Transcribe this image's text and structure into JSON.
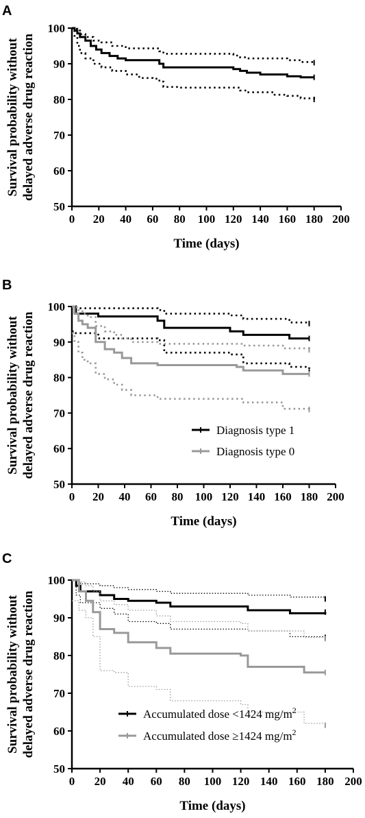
{
  "chart_data": [
    {
      "panel": "A",
      "type": "line",
      "step": true,
      "xlabel": "Time (days)",
      "ylabel_line1": "Survival probability without",
      "ylabel_line2": "delayed adverse drug reaction",
      "xlim": [
        0,
        200
      ],
      "ylim": [
        50,
        100
      ],
      "xticks": [
        0,
        20,
        40,
        60,
        80,
        100,
        120,
        140,
        160,
        180,
        200
      ],
      "yticks": [
        50,
        60,
        70,
        80,
        90,
        100
      ],
      "legend": [],
      "series": [
        {
          "style": "solid",
          "color": "#000000",
          "x": [
            0,
            2,
            4,
            6,
            10,
            14,
            18,
            22,
            28,
            34,
            40,
            50,
            60,
            65,
            68,
            80,
            100,
            120,
            125,
            130,
            140,
            150,
            160,
            170,
            180
          ],
          "y": [
            100,
            99.3,
            98.5,
            97.5,
            96.5,
            95,
            94,
            93,
            92.2,
            91.5,
            91,
            91,
            91,
            90,
            89,
            89,
            89,
            88.5,
            88,
            87.5,
            87,
            87,
            86.5,
            86.2,
            86.2
          ]
        },
        {
          "style": "dotted",
          "color": "#000000",
          "x": [
            0,
            2,
            4,
            6,
            10,
            16,
            22,
            30,
            40,
            50,
            60,
            65,
            68,
            80,
            100,
            120,
            125,
            130,
            150,
            160,
            170,
            180
          ],
          "y": [
            100,
            99.8,
            99.3,
            98.3,
            97.5,
            96.5,
            96,
            95,
            94.3,
            94.3,
            94.3,
            93.5,
            92.8,
            92.8,
            92.8,
            92.3,
            91.8,
            91.5,
            91.5,
            91,
            90.5,
            90.3
          ]
        },
        {
          "style": "dotted",
          "color": "#000000",
          "x": [
            0,
            2,
            4,
            6,
            10,
            16,
            22,
            30,
            40,
            50,
            60,
            65,
            68,
            80,
            100,
            120,
            125,
            130,
            150,
            160,
            170,
            180
          ],
          "y": [
            100,
            97.5,
            95,
            93,
            91.5,
            90,
            89,
            88,
            87,
            86,
            85.8,
            85,
            83.5,
            83.3,
            83.3,
            83.3,
            82.5,
            82,
            81.3,
            81,
            80.3,
            80
          ]
        }
      ]
    },
    {
      "panel": "B",
      "type": "line",
      "step": true,
      "xlabel": "Time (days)",
      "ylabel_line1": "Survival probability without",
      "ylabel_line2": "delayed adverse drug reaction",
      "xlim": [
        0,
        200
      ],
      "ylim": [
        50,
        100
      ],
      "xticks": [
        0,
        20,
        40,
        60,
        80,
        100,
        120,
        140,
        160,
        180,
        200
      ],
      "yticks": [
        50,
        60,
        70,
        80,
        90,
        100
      ],
      "legend": [
        {
          "label": "Diagnosis type 1",
          "color": "#000000"
        },
        {
          "label": "Diagnosis type  0",
          "color": "#999999"
        }
      ],
      "series": [
        {
          "style": "solid",
          "color": "#000000",
          "x": [
            0,
            3,
            20,
            65,
            70,
            120,
            130,
            165,
            180
          ],
          "y": [
            100,
            98,
            97.2,
            96,
            94,
            93,
            92,
            91,
            91
          ]
        },
        {
          "style": "dotted",
          "color": "#000000",
          "x": [
            0,
            3,
            20,
            65,
            70,
            120,
            130,
            165,
            180
          ],
          "y": [
            100,
            99.5,
            99.5,
            99,
            98,
            97.5,
            96.5,
            95.5,
            95.2
          ]
        },
        {
          "style": "dotted",
          "color": "#000000",
          "x": [
            0,
            3,
            20,
            65,
            70,
            120,
            130,
            155,
            165,
            180
          ],
          "y": [
            93,
            92.5,
            91,
            90.5,
            87,
            86.5,
            84,
            84,
            83,
            81.5
          ]
        },
        {
          "style": "solid",
          "color": "#999999",
          "x": [
            0,
            2,
            5,
            8,
            12,
            18,
            25,
            32,
            38,
            45,
            60,
            65,
            125,
            130,
            160,
            180
          ],
          "y": [
            100,
            98,
            96,
            95,
            94,
            90,
            88,
            87,
            85.5,
            84,
            84,
            83.5,
            83,
            82,
            81,
            81
          ]
        },
        {
          "style": "dotted",
          "color": "#999999",
          "x": [
            0,
            2,
            5,
            8,
            12,
            18,
            25,
            32,
            38,
            45,
            60,
            65,
            125,
            130,
            160,
            180
          ],
          "y": [
            100,
            99.8,
            99,
            98,
            97,
            94.5,
            93,
            92,
            91,
            90,
            90,
            89.5,
            89.5,
            89,
            88.2,
            87.8
          ]
        },
        {
          "style": "dotted",
          "color": "#999999",
          "x": [
            0,
            2,
            5,
            8,
            12,
            18,
            25,
            32,
            38,
            45,
            60,
            65,
            125,
            130,
            160,
            180
          ],
          "y": [
            92.5,
            90,
            87,
            85,
            84,
            81,
            79.5,
            78,
            76.5,
            75,
            75,
            74,
            74,
            73,
            71.2,
            71
          ]
        }
      ]
    },
    {
      "panel": "C",
      "type": "line",
      "step": true,
      "xlabel": "Time (days)",
      "ylabel_line1": "Survival probability without",
      "ylabel_line2": "delayed adverse drug reaction",
      "xlim": [
        0,
        200
      ],
      "ylim": [
        50,
        100
      ],
      "xticks": [
        0,
        20,
        40,
        60,
        80,
        100,
        120,
        140,
        160,
        180,
        200
      ],
      "yticks": [
        50,
        60,
        70,
        80,
        90,
        100
      ],
      "legend": [
        {
          "label": "Accumulated dose <1424 mg/m",
          "sup": "2",
          "color": "#000000"
        },
        {
          "label": "Accumulated dose ≥1424 mg/m",
          "sup": "2",
          "color": "#999999"
        }
      ],
      "series": [
        {
          "style": "solid",
          "color": "#000000",
          "x": [
            0,
            3,
            6,
            20,
            30,
            40,
            60,
            70,
            125,
            155,
            180
          ],
          "y": [
            100,
            98.5,
            97,
            96,
            95,
            94.5,
            94,
            93,
            92,
            91.2,
            91.5
          ]
        },
        {
          "style": "dotted",
          "color": "#000000",
          "x": [
            0,
            3,
            6,
            20,
            30,
            40,
            60,
            70,
            125,
            155,
            180
          ],
          "y": [
            100,
            99.5,
            99,
            98.5,
            98,
            97.5,
            97,
            96.5,
            96,
            95.5,
            95
          ]
        },
        {
          "style": "dotted",
          "color": "#000000",
          "x": [
            0,
            3,
            6,
            20,
            30,
            40,
            60,
            70,
            125,
            155,
            180
          ],
          "y": [
            100,
            96,
            94,
            92.5,
            91,
            89,
            88.5,
            87,
            86.5,
            85,
            84.8
          ]
        },
        {
          "style": "solid",
          "color": "#999999",
          "x": [
            0,
            5,
            10,
            15,
            20,
            30,
            40,
            60,
            70,
            120,
            125,
            165,
            180
          ],
          "y": [
            100,
            97,
            94.5,
            91.5,
            87,
            86,
            83.5,
            82,
            80.5,
            80,
            77,
            75.5,
            75.5
          ]
        },
        {
          "style": "dotted",
          "color": "#999999",
          "x": [
            0,
            5,
            10,
            15,
            20,
            30,
            40,
            60,
            70,
            120,
            125,
            165,
            180
          ],
          "y": [
            100,
            99.5,
            98.5,
            97,
            94.5,
            93.5,
            92,
            90.5,
            89,
            88.5,
            86.5,
            84.8,
            84.5
          ]
        },
        {
          "style": "dotted",
          "color": "#999999",
          "x": [
            0,
            5,
            10,
            15,
            20,
            30,
            40,
            60,
            70,
            120,
            125,
            165,
            180
          ],
          "y": [
            94.5,
            92,
            90,
            85,
            76,
            75.5,
            71.8,
            71,
            68,
            67,
            65,
            62,
            61.5
          ]
        }
      ]
    }
  ]
}
